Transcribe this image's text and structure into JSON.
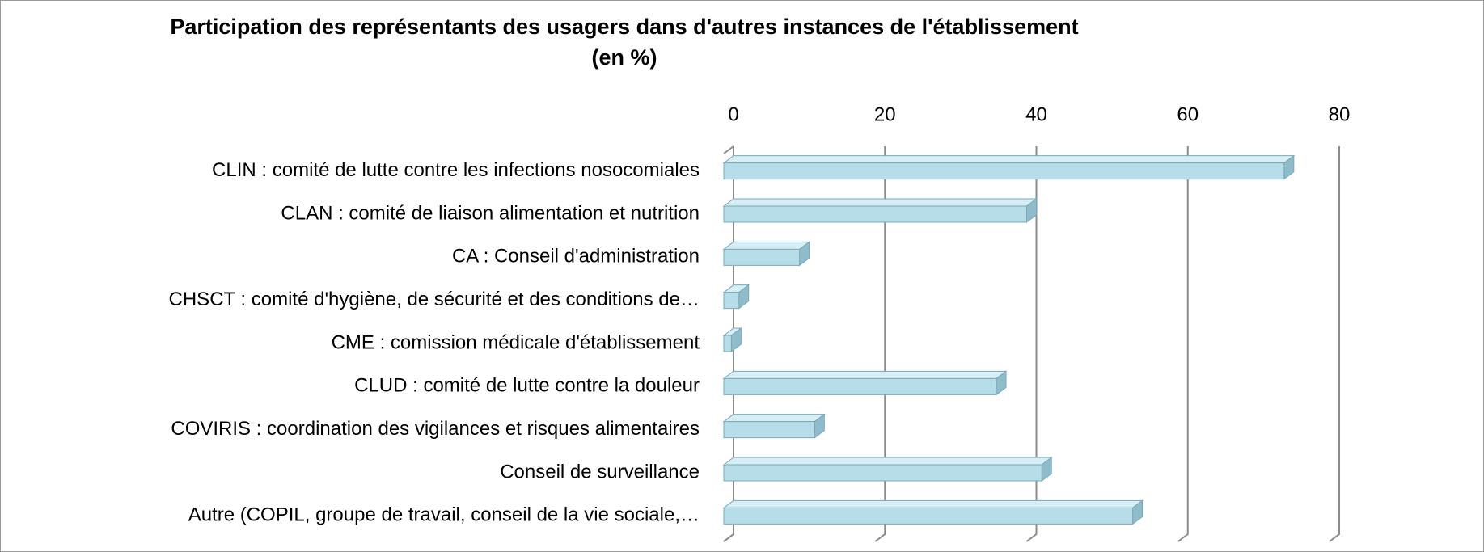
{
  "chart_data": {
    "type": "bar",
    "orientation": "horizontal",
    "title": "Participation des représentants des usagers dans d'autres  instances de l'établissement",
    "subtitle": "(en %)",
    "categories": [
      "CLIN : comité de lutte contre les infections nosocomiales",
      "CLAN : comité de liaison alimentation et nutrition",
      "CA : Conseil d'administration",
      "CHSCT : comité d'hygiène, de sécurité et des conditions de…",
      "CME : comission médicale d'établissement",
      "CLUD : comité de lutte contre la douleur",
      "COVIRIS : coordination des vigilances et risques alimentaires",
      "Conseil de surveillance",
      "Autre (COPIL, groupe de travail, conseil de la vie sociale,…"
    ],
    "values": [
      74,
      40,
      10,
      2,
      1,
      36,
      12,
      42,
      54
    ],
    "color": "#b7dde8",
    "xlim": [
      0,
      80
    ],
    "xticks": [
      0,
      20,
      40,
      60,
      80
    ],
    "grid": true
  }
}
